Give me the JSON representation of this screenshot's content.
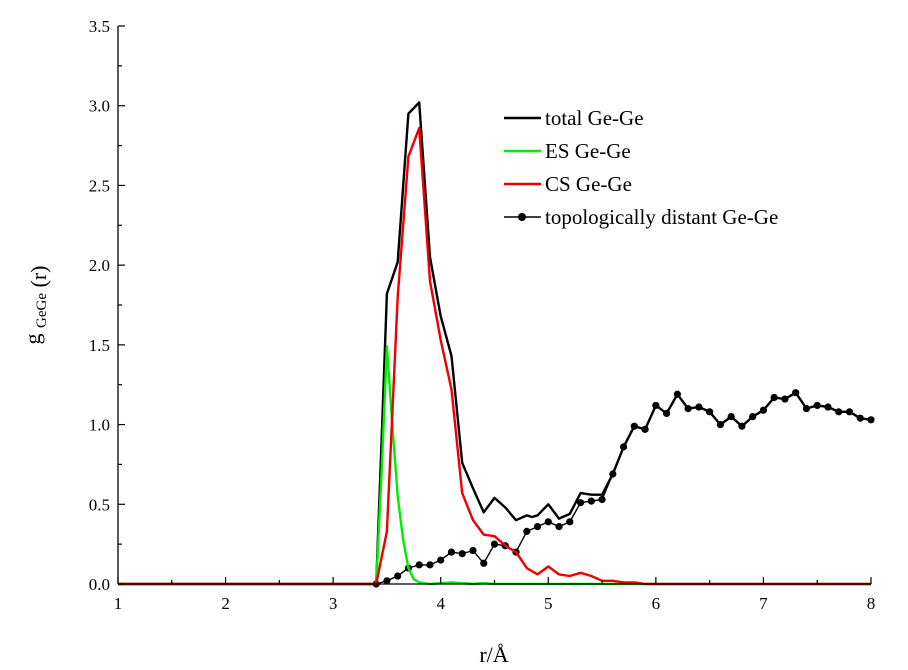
{
  "chart_data": {
    "type": "line",
    "title": "",
    "xlabel": "r/Å",
    "ylabel": {
      "main": "g",
      "sub": "GeGe",
      "suffix": "(r)"
    },
    "xlim": [
      1,
      8
    ],
    "ylim": [
      0,
      3.5
    ],
    "xticks": [
      1,
      2,
      3,
      4,
      5,
      6,
      7,
      8
    ],
    "yticks": [
      0.0,
      0.5,
      1.0,
      1.5,
      2.0,
      2.5,
      3.0,
      3.5
    ],
    "xtick_labels": [
      "1",
      "2",
      "3",
      "4",
      "5",
      "6",
      "7",
      "8"
    ],
    "ytick_labels": [
      "0.0",
      "0.5",
      "1.0",
      "1.5",
      "2.0",
      "2.5",
      "3.0",
      "3.5"
    ],
    "grid": false,
    "legend_position": "top-right",
    "series": [
      {
        "name": "total Ge-Ge",
        "color": "#000000",
        "marker": "none",
        "x": [
          1.0,
          3.3,
          3.4,
          3.45,
          3.5,
          3.6,
          3.7,
          3.8,
          3.9,
          4.0,
          4.1,
          4.2,
          4.3,
          4.4,
          4.5,
          4.6,
          4.7,
          4.8,
          4.85,
          4.9,
          5.0,
          5.1,
          5.2,
          5.3,
          5.4,
          5.5,
          5.6,
          5.7,
          5.8,
          5.9,
          6.0,
          6.1,
          6.2,
          6.3,
          6.4,
          6.5,
          6.6,
          6.7,
          6.8,
          6.9,
          7.0,
          7.1,
          7.2,
          7.3,
          7.4,
          7.5,
          7.6,
          7.7,
          7.8,
          7.9,
          8.0
        ],
        "y": [
          0.0,
          0.0,
          0.0,
          0.9,
          1.82,
          2.02,
          2.95,
          3.02,
          2.05,
          1.68,
          1.43,
          0.76,
          0.6,
          0.45,
          0.54,
          0.48,
          0.4,
          0.43,
          0.42,
          0.43,
          0.5,
          0.41,
          0.44,
          0.57,
          0.56,
          0.56,
          0.69,
          0.86,
          0.99,
          0.97,
          1.12,
          1.07,
          1.19,
          1.1,
          1.11,
          1.08,
          1.0,
          1.05,
          0.99,
          1.05,
          1.09,
          1.17,
          1.16,
          1.2,
          1.1,
          1.12,
          1.11,
          1.08,
          1.08,
          1.04,
          1.03
        ]
      },
      {
        "name": "ES Ge-Ge",
        "color": "#00ee00",
        "marker": "none",
        "x": [
          1.0,
          3.4,
          3.45,
          3.5,
          3.55,
          3.6,
          3.65,
          3.7,
          3.75,
          3.8,
          3.9,
          4.0,
          4.1,
          4.2,
          4.3,
          4.4,
          4.5,
          5.0,
          5.5,
          6.0,
          8.0
        ],
        "y": [
          0.0,
          0.0,
          0.7,
          1.49,
          1.0,
          0.55,
          0.28,
          0.1,
          0.03,
          0.01,
          0.0,
          0.005,
          0.01,
          0.005,
          0.0,
          0.005,
          0.0,
          0.0,
          0.0,
          0.0,
          0.0
        ]
      },
      {
        "name": "CS Ge-Ge",
        "color": "#ee0000",
        "marker": "none",
        "x": [
          1.0,
          3.4,
          3.5,
          3.6,
          3.7,
          3.8,
          3.9,
          4.0,
          4.1,
          4.2,
          4.3,
          4.4,
          4.5,
          4.6,
          4.7,
          4.8,
          4.9,
          5.0,
          5.1,
          5.2,
          5.3,
          5.4,
          5.5,
          5.6,
          5.7,
          5.8,
          5.9,
          6.0,
          8.0
        ],
        "y": [
          0.0,
          0.0,
          0.33,
          1.8,
          2.68,
          2.86,
          1.9,
          1.53,
          1.22,
          0.57,
          0.4,
          0.31,
          0.3,
          0.24,
          0.2,
          0.1,
          0.06,
          0.11,
          0.06,
          0.05,
          0.07,
          0.05,
          0.02,
          0.02,
          0.01,
          0.01,
          0.0,
          0.0,
          0.0
        ]
      },
      {
        "name": "topologically distant Ge-Ge",
        "color": "#000000",
        "marker": "circle",
        "x": [
          3.4,
          3.5,
          3.6,
          3.7,
          3.8,
          3.9,
          4.0,
          4.1,
          4.2,
          4.3,
          4.4,
          4.5,
          4.6,
          4.7,
          4.8,
          4.9,
          5.0,
          5.1,
          5.2,
          5.3,
          5.4,
          5.5,
          5.6,
          5.7,
          5.8,
          5.9,
          6.0,
          6.1,
          6.2,
          6.3,
          6.4,
          6.5,
          6.6,
          6.7,
          6.8,
          6.9,
          7.0,
          7.1,
          7.2,
          7.3,
          7.4,
          7.5,
          7.6,
          7.7,
          7.8,
          7.9,
          8.0
        ],
        "y": [
          0.0,
          0.02,
          0.05,
          0.1,
          0.12,
          0.12,
          0.15,
          0.2,
          0.19,
          0.21,
          0.13,
          0.25,
          0.24,
          0.2,
          0.33,
          0.36,
          0.39,
          0.36,
          0.39,
          0.51,
          0.52,
          0.53,
          0.69,
          0.86,
          0.99,
          0.97,
          1.12,
          1.07,
          1.19,
          1.1,
          1.11,
          1.08,
          1.0,
          1.05,
          0.99,
          1.05,
          1.09,
          1.17,
          1.16,
          1.2,
          1.1,
          1.12,
          1.11,
          1.08,
          1.08,
          1.04,
          1.03
        ]
      }
    ]
  }
}
